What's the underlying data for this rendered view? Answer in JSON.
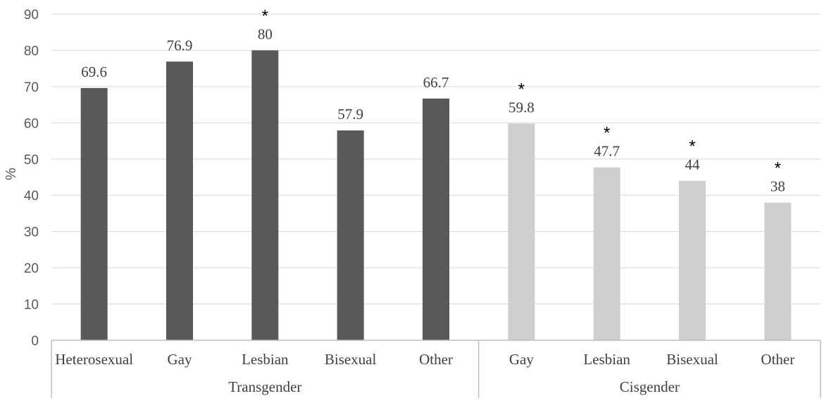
{
  "chart_data": {
    "type": "bar",
    "ylabel": "%",
    "ylim": [
      0,
      90
    ],
    "yticks": [
      0,
      10,
      20,
      30,
      40,
      50,
      60,
      70,
      80,
      90
    ],
    "grid": true,
    "groups": [
      {
        "name": "Transgender",
        "color": "#595959",
        "categories": [
          "Heterosexual",
          "Gay",
          "Lesbian",
          "Bisexual",
          "Other"
        ],
        "values": [
          69.6,
          76.9,
          80,
          57.9,
          66.7
        ],
        "value_labels": [
          "69.6",
          "76.9",
          "80",
          "57.9",
          "66.7"
        ],
        "significant": [
          false,
          false,
          true,
          false,
          false
        ]
      },
      {
        "name": "Cisgender",
        "color": "#d0cfcf",
        "categories": [
          "Gay",
          "Lesbian",
          "Bisexual",
          "Other"
        ],
        "values": [
          59.8,
          47.7,
          44,
          38
        ],
        "value_labels": [
          "59.8",
          "47.7",
          "44",
          "38"
        ],
        "significant": [
          true,
          true,
          true,
          true
        ]
      }
    ],
    "significance_marker": "*"
  }
}
